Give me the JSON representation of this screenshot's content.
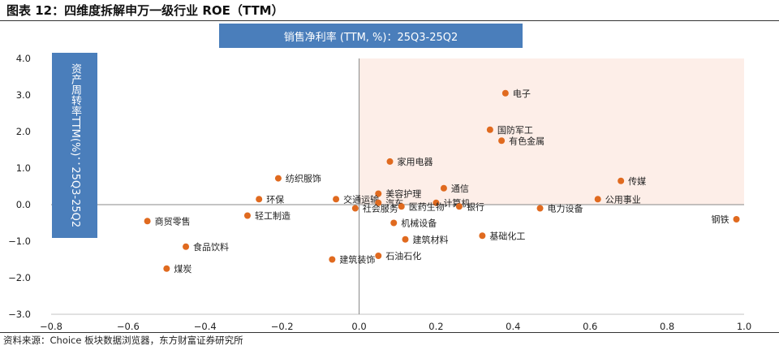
{
  "title": "图表 12：四维度拆解申万一级行业 ROE（TTM）",
  "source": "资料来源：Choice 板块数据浏览器，东方财富证券研究所",
  "colors": {
    "point": "#e06a1f",
    "quadrant_fill": "#fdeee8",
    "label_box": "#4a7ebb",
    "axis": "#888888",
    "text": "#222222"
  },
  "chart_data": {
    "type": "scatter",
    "xlabel": "销售净利率 (TTM, %)：25Q3-25Q2",
    "ylabel": "资产周转率TTM(%)：25Q3-25Q2",
    "xlim": [
      -0.8,
      1.0
    ],
    "ylim": [
      -3.0,
      4.0
    ],
    "x_ticks": [
      "−0.8",
      "−0.6",
      "−0.4",
      "−0.2",
      "0.0",
      "0.2",
      "0.4",
      "0.6",
      "0.8",
      "1.0"
    ],
    "y_ticks": [
      "4.0",
      "3.0",
      "2.0",
      "1.0",
      "0.0",
      "−1.0",
      "−2.0",
      "−3.0"
    ],
    "grid": false,
    "highlight_quadrant": "x>0, y>0",
    "points": [
      {
        "label": "电子",
        "x": 0.38,
        "y": 3.05
      },
      {
        "label": "国防军工",
        "x": 0.34,
        "y": 2.05
      },
      {
        "label": "有色金属",
        "x": 0.37,
        "y": 1.75
      },
      {
        "label": "家用电器",
        "x": 0.08,
        "y": 1.18
      },
      {
        "label": "纺织服饰",
        "x": -0.21,
        "y": 0.72
      },
      {
        "label": "传媒",
        "x": 0.68,
        "y": 0.65
      },
      {
        "label": "通信",
        "x": 0.22,
        "y": 0.45
      },
      {
        "label": "美容护理",
        "x": 0.05,
        "y": 0.3
      },
      {
        "label": "环保",
        "x": -0.26,
        "y": 0.15
      },
      {
        "label": "公用事业",
        "x": 0.62,
        "y": 0.15
      },
      {
        "label": "交通运输",
        "x": -0.06,
        "y": 0.15
      },
      {
        "label": "计算机",
        "x": 0.2,
        "y": 0.05
      },
      {
        "label": "汽车",
        "x": 0.05,
        "y": 0.05
      },
      {
        "label": "医药生物",
        "x": 0.11,
        "y": -0.05
      },
      {
        "label": "银行",
        "x": 0.26,
        "y": -0.05
      },
      {
        "label": "电力设备",
        "x": 0.47,
        "y": -0.1
      },
      {
        "label": "社会服务",
        "x": -0.01,
        "y": -0.1
      },
      {
        "label": "轻工制造",
        "x": -0.29,
        "y": -0.3
      },
      {
        "label": "商贸零售",
        "x": -0.55,
        "y": -0.45
      },
      {
        "label": "钢铁",
        "x": 0.98,
        "y": -0.4
      },
      {
        "label": "机械设备",
        "x": 0.09,
        "y": -0.5
      },
      {
        "label": "基础化工",
        "x": 0.32,
        "y": -0.85
      },
      {
        "label": "建筑材料",
        "x": 0.12,
        "y": -0.95
      },
      {
        "label": "食品饮料",
        "x": -0.45,
        "y": -1.15
      },
      {
        "label": "石油石化",
        "x": 0.05,
        "y": -1.4
      },
      {
        "label": "建筑装饰",
        "x": -0.07,
        "y": -1.5
      },
      {
        "label": "煤炭",
        "x": -0.5,
        "y": -1.75
      }
    ]
  }
}
